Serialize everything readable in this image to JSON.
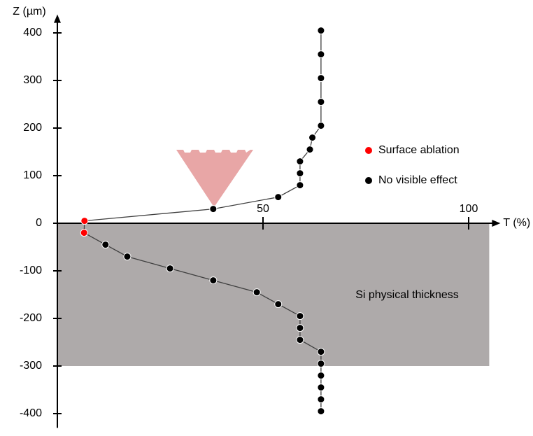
{
  "chart_data": {
    "type": "scatter-line",
    "xlabel": "T (%)",
    "ylabel": "Z (µm)",
    "xlim": [
      0,
      105
    ],
    "ylim": [
      -430,
      430
    ],
    "xticks": [
      50,
      100
    ],
    "yticks": [
      -400,
      -300,
      -200,
      -100,
      0,
      100,
      200,
      300,
      400
    ],
    "legend": [
      {
        "name": "Surface ablation",
        "color": "#ff0000"
      },
      {
        "name": "No visible effect",
        "color": "#000000"
      }
    ],
    "series": [
      {
        "x": [
          64.1,
          64.1,
          64.1,
          64.1,
          64.1,
          62,
          61.4,
          59,
          59,
          59,
          53.7,
          37.9,
          6.6,
          6.5,
          11.7,
          17,
          27.4,
          37.9,
          48.5,
          53.7,
          59,
          59,
          59,
          64.1,
          64.1,
          64.1,
          64.1,
          64.1,
          64.1
        ],
        "y": [
          405,
          355,
          305,
          255,
          205,
          180,
          155,
          130,
          105,
          80,
          55,
          30,
          5,
          -20,
          -45,
          -70,
          -95,
          -120,
          -145,
          -170,
          -195,
          -220,
          -245,
          -270,
          -295,
          -320,
          -345,
          -370,
          -395
        ],
        "marker_colors": [
          "#000000",
          "#000000",
          "#000000",
          "#000000",
          "#000000",
          "#000000",
          "#000000",
          "#000000",
          "#000000",
          "#000000",
          "#000000",
          "#000000",
          "#ff0000",
          "#ff0000",
          "#000000",
          "#000000",
          "#000000",
          "#000000",
          "#000000",
          "#000000",
          "#000000",
          "#000000",
          "#000000",
          "#000000",
          "#000000",
          "#000000",
          "#000000",
          "#000000",
          "#000000"
        ],
        "line_color": "#404040"
      }
    ],
    "shaded_region": {
      "ylim": [
        -300,
        0
      ],
      "color": "#aeaaaa",
      "label": "Si physical thickness"
    }
  }
}
